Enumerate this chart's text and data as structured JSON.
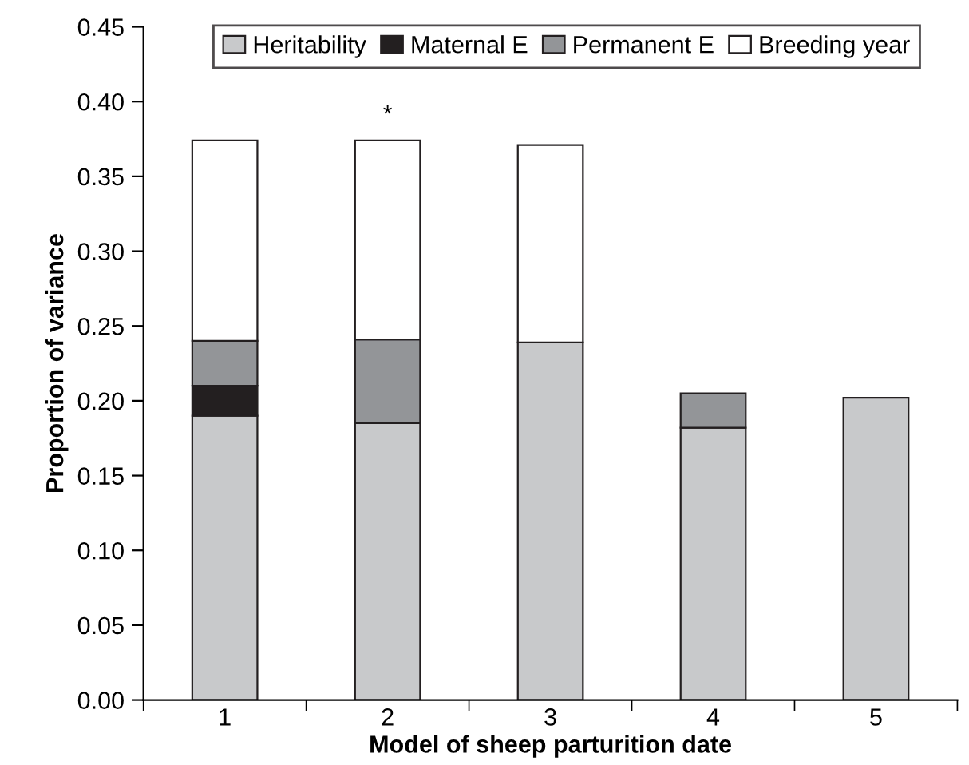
{
  "chart_data": {
    "type": "bar",
    "stacked": true,
    "xlabel": "Model of sheep parturition date",
    "ylabel": "Proportion of variance",
    "categories": [
      "1",
      "2",
      "3",
      "4",
      "5"
    ],
    "series": [
      {
        "name": "Heritability",
        "color": "#c8c9cb",
        "values": [
          0.19,
          0.185,
          0.239,
          0.182,
          0.202
        ]
      },
      {
        "name": "Maternal E",
        "color": "#231f20",
        "values": [
          0.02,
          null,
          null,
          null,
          null
        ]
      },
      {
        "name": "Permanent E",
        "color": "#939598",
        "values": [
          0.03,
          0.056,
          null,
          0.023,
          null
        ]
      },
      {
        "name": "Breeding year",
        "color": "#ffffff",
        "values": [
          0.134,
          0.133,
          0.132,
          null,
          null
        ]
      }
    ],
    "ylim": [
      0,
      0.45
    ],
    "yticks": [
      {
        "value": 0,
        "label": "0.00"
      },
      {
        "value": 0.05,
        "label": "0.05"
      },
      {
        "value": 0.1,
        "label": "0.10"
      },
      {
        "value": 0.15,
        "label": "0.15"
      },
      {
        "value": 0.2,
        "label": "0.20"
      },
      {
        "value": 0.25,
        "label": "0.25"
      },
      {
        "value": 0.3,
        "label": "0.30"
      },
      {
        "value": 0.35,
        "label": "0.35"
      },
      {
        "value": 0.4,
        "label": "0.40"
      },
      {
        "value": 0.45,
        "label": "0.45"
      }
    ],
    "annotations": [
      {
        "text": "*",
        "x": "2",
        "y": 0.374
      }
    ],
    "legend": "top",
    "grid": false
  }
}
